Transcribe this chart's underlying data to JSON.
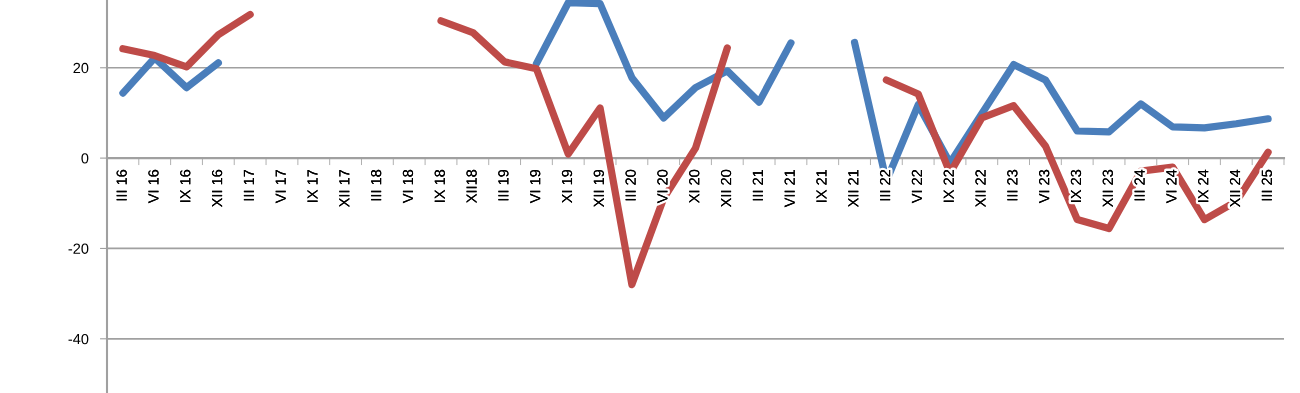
{
  "chart_data": {
    "type": "line",
    "categories": [
      "III 16",
      "VI 16",
      "IX 16",
      "XII 16",
      "III 17",
      "VI 17",
      "IX 17",
      "XII 17",
      "III 18",
      "VI 18",
      "IX 18",
      "XII18",
      "III 19",
      "VI 19",
      "XI 19",
      "XII 19",
      "III 20",
      "VI 20",
      "XI 20",
      "XII 20",
      "III 21",
      "VII 21",
      "IX 21",
      "XII 21",
      "III 22",
      "VI 22",
      "IX 22",
      "XII 22",
      "III 23",
      "VI 23",
      "IX 23",
      "XII 23",
      "III 24",
      "VI 24",
      "IX 24",
      "XII 24",
      "III 25"
    ],
    "series": [
      {
        "color": "#4a7ebb",
        "values": [
          14.4,
          22.2,
          15.6,
          21.1,
          null,
          null,
          null,
          null,
          null,
          null,
          null,
          null,
          null,
          20.9,
          34.4,
          34.2,
          17.8,
          8.9,
          15.6,
          19.3,
          12.4,
          25.5,
          null,
          25.6,
          -5.1,
          11.8,
          -1.1,
          9.8,
          20.7,
          17.3,
          6.0,
          5.8,
          12.0,
          6.9,
          6.7,
          7.6,
          8.7
        ]
      },
      {
        "color": "#be4b48",
        "values": [
          24.2,
          22.7,
          20.2,
          27.3,
          31.8,
          null,
          null,
          null,
          null,
          null,
          30.4,
          27.8,
          21.3,
          19.8,
          0.9,
          11.1,
          -28,
          -8.9,
          2.2,
          24.4,
          null,
          null,
          null,
          null,
          17.3,
          14.2,
          -3.3,
          8.9,
          11.6,
          2.7,
          -13.6,
          -15.6,
          -2.9,
          -2.0,
          -13.6,
          -9.6,
          1.3
        ]
      }
    ],
    "ylim": [
      -52,
      35
    ],
    "yticks": [
      -40,
      -20,
      0,
      20
    ],
    "grid": "y",
    "line_style": "solid",
    "marker": "none"
  }
}
